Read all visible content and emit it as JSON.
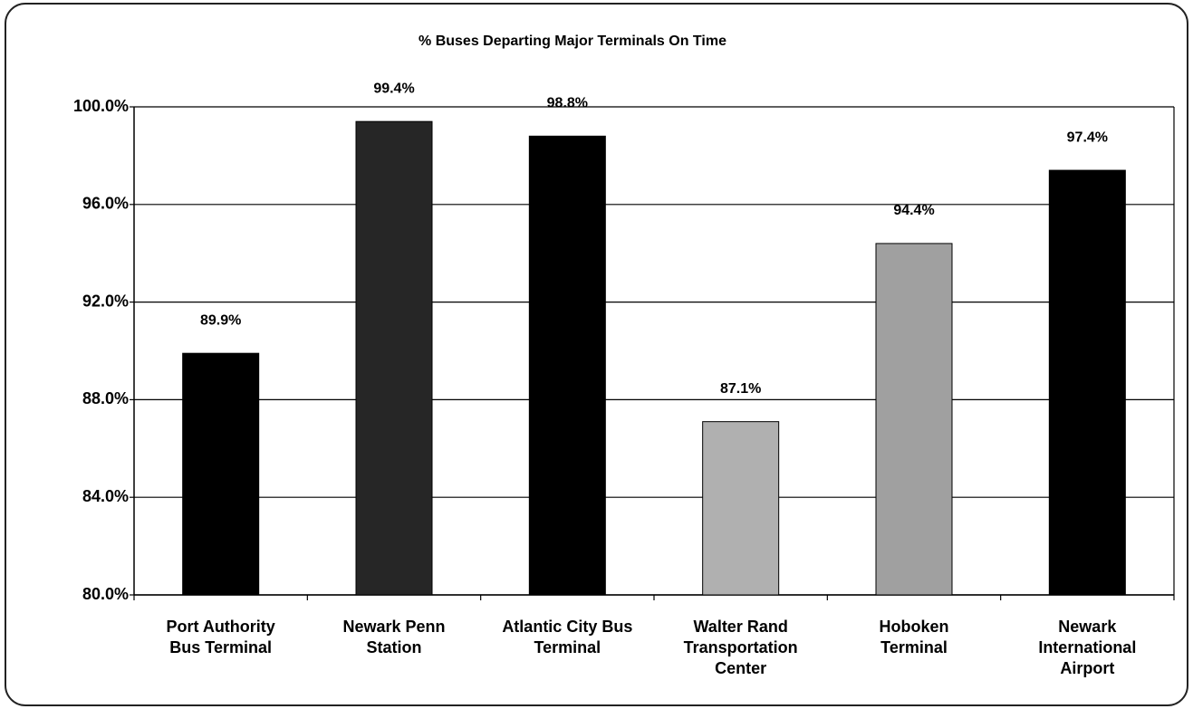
{
  "chart_data": {
    "type": "bar",
    "title": "% Buses Departing Major Terminals On Time",
    "categories": [
      "Port Authority Bus Terminal",
      "Newark Penn Station",
      "Atlantic City Bus Terminal",
      "Walter Rand Transportation Center",
      "Hoboken Terminal",
      "Newark International Airport"
    ],
    "values": [
      89.9,
      99.4,
      98.8,
      87.1,
      94.4,
      97.4
    ],
    "value_labels": [
      "89.9%",
      "99.4%",
      "98.8%",
      "87.1%",
      "94.4%",
      "97.4%"
    ],
    "colors": [
      "#000000",
      "#262626",
      "#000000",
      "#b0b0b0",
      "#a0a0a0",
      "#000000"
    ],
    "ylim": [
      80,
      100
    ],
    "yticks": [
      {
        "value": 80,
        "label": "80.0%"
      },
      {
        "value": 84,
        "label": "84.0%"
      },
      {
        "value": 88,
        "label": "88.0%"
      },
      {
        "value": 92,
        "label": "92.0%"
      },
      {
        "value": 96,
        "label": "96.0%"
      },
      {
        "value": 100,
        "label": "100.0%"
      }
    ],
    "grid": true
  }
}
